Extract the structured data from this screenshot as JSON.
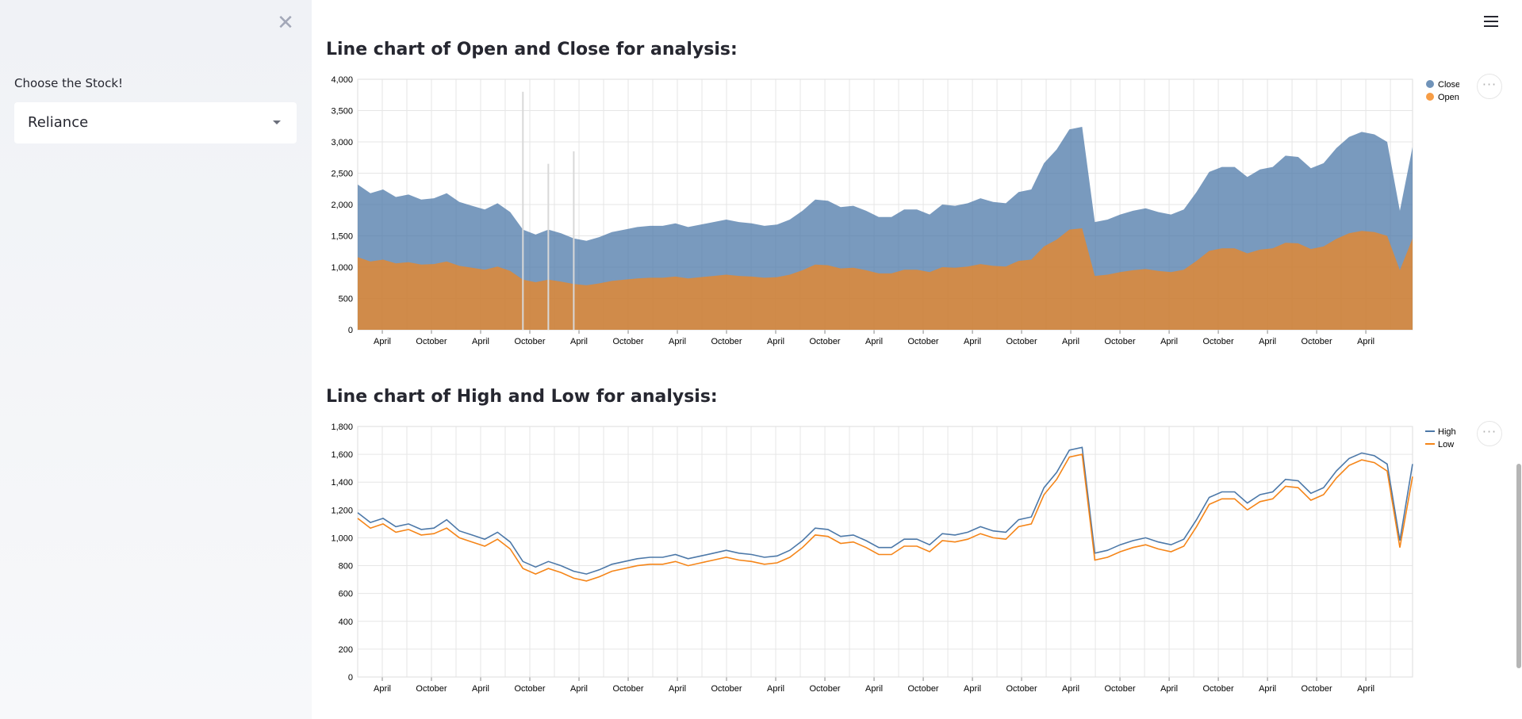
{
  "sidebar": {
    "close_icon": "✕",
    "select_label": "Choose the Stock!",
    "selected_stock": "Reliance"
  },
  "header": {
    "menu_icon": "hamburger-menu-icon"
  },
  "colors": {
    "blue": "#4c78a8",
    "orange": "#f58518",
    "grid": "#e6e6e6"
  },
  "chart_data": [
    {
      "type": "area",
      "title": "Line chart of Open and Close for analysis:",
      "stacked": true,
      "ylim": [
        0,
        4000
      ],
      "yticks": [
        0,
        500,
        1000,
        1500,
        2000,
        2500,
        3000,
        3500,
        4000
      ],
      "xtick_labels": [
        "April",
        "October",
        "April",
        "October",
        "April",
        "October",
        "April",
        "October",
        "April",
        "October",
        "April",
        "October",
        "April",
        "October",
        "April",
        "October",
        "April",
        "October",
        "April",
        "October",
        "April"
      ],
      "legend": {
        "position": "top-right",
        "entries": [
          {
            "name": "Close",
            "color": "#4c78a8",
            "symbol": "circle"
          },
          {
            "name": "Open",
            "color": "#f58518",
            "symbol": "circle"
          }
        ]
      },
      "grid": true,
      "series": [
        {
          "name": "Open",
          "values": [
            1160,
            1090,
            1120,
            1060,
            1080,
            1040,
            1050,
            1090,
            1020,
            990,
            960,
            1010,
            940,
            800,
            760,
            800,
            770,
            730,
            710,
            740,
            780,
            800,
            820,
            830,
            830,
            850,
            820,
            840,
            860,
            880,
            860,
            850,
            830,
            840,
            880,
            950,
            1040,
            1030,
            980,
            990,
            950,
            900,
            900,
            960,
            960,
            920,
            1000,
            990,
            1010,
            1050,
            1020,
            1010,
            1100,
            1120,
            1330,
            1440,
            1600,
            1620,
            860,
            880,
            920,
            950,
            970,
            940,
            920,
            960,
            1100,
            1260,
            1300,
            1300,
            1220,
            1280,
            1300,
            1390,
            1380,
            1290,
            1330,
            1450,
            1540,
            1580,
            1560,
            1500,
            950,
            1460
          ]
        },
        {
          "name": "Close",
          "values": [
            1160,
            1090,
            1120,
            1060,
            1080,
            1040,
            1050,
            1090,
            1020,
            990,
            960,
            1010,
            940,
            800,
            760,
            800,
            770,
            730,
            710,
            740,
            780,
            800,
            820,
            830,
            830,
            850,
            820,
            840,
            860,
            880,
            860,
            850,
            830,
            840,
            880,
            950,
            1040,
            1030,
            980,
            990,
            950,
            900,
            900,
            960,
            960,
            920,
            1000,
            990,
            1010,
            1050,
            1020,
            1010,
            1100,
            1120,
            1330,
            1440,
            1600,
            1620,
            860,
            880,
            920,
            950,
            970,
            940,
            920,
            960,
            1100,
            1260,
            1300,
            1300,
            1220,
            1280,
            1300,
            1390,
            1380,
            1290,
            1330,
            1450,
            1540,
            1580,
            1560,
            1500,
            950,
            1460
          ]
        }
      ],
      "spikes": [
        {
          "index": 13,
          "value": 3800
        },
        {
          "index": 15,
          "value": 2650
        },
        {
          "index": 17,
          "value": 2850
        }
      ]
    },
    {
      "type": "line",
      "title": "Line chart of High and Low for analysis:",
      "ylim": [
        0,
        1800
      ],
      "yticks": [
        0,
        200,
        400,
        600,
        800,
        1000,
        1200,
        1400,
        1600,
        1800
      ],
      "xtick_labels": [
        "April",
        "October",
        "April",
        "October",
        "April",
        "October",
        "April",
        "October",
        "April",
        "October",
        "April",
        "October",
        "April",
        "October",
        "April",
        "October",
        "April",
        "October",
        "April",
        "October",
        "April"
      ],
      "legend": {
        "position": "top-right",
        "entries": [
          {
            "name": "High",
            "color": "#4c78a8",
            "symbol": "line"
          },
          {
            "name": "Low",
            "color": "#f58518",
            "symbol": "line"
          }
        ]
      },
      "grid": true,
      "series": [
        {
          "name": "High",
          "values": [
            1180,
            1110,
            1140,
            1080,
            1100,
            1060,
            1070,
            1130,
            1050,
            1020,
            990,
            1040,
            970,
            830,
            790,
            830,
            800,
            760,
            740,
            770,
            810,
            830,
            850,
            860,
            860,
            880,
            850,
            870,
            890,
            910,
            890,
            880,
            860,
            870,
            910,
            980,
            1070,
            1060,
            1010,
            1020,
            980,
            930,
            930,
            990,
            990,
            950,
            1030,
            1020,
            1040,
            1080,
            1050,
            1040,
            1130,
            1150,
            1360,
            1470,
            1630,
            1650,
            890,
            910,
            950,
            980,
            1000,
            970,
            950,
            990,
            1130,
            1290,
            1330,
            1330,
            1250,
            1310,
            1330,
            1420,
            1410,
            1320,
            1360,
            1480,
            1570,
            1610,
            1590,
            1530,
            980,
            1530
          ]
        },
        {
          "name": "Low",
          "values": [
            1140,
            1070,
            1100,
            1040,
            1060,
            1020,
            1030,
            1070,
            1000,
            970,
            940,
            990,
            920,
            780,
            740,
            780,
            750,
            710,
            690,
            720,
            760,
            780,
            800,
            810,
            810,
            830,
            800,
            820,
            840,
            860,
            840,
            830,
            810,
            820,
            860,
            930,
            1020,
            1010,
            960,
            970,
            930,
            880,
            880,
            940,
            940,
            900,
            980,
            970,
            990,
            1030,
            1000,
            990,
            1080,
            1100,
            1310,
            1420,
            1580,
            1600,
            840,
            860,
            900,
            930,
            950,
            920,
            900,
            940,
            1080,
            1240,
            1280,
            1280,
            1200,
            1260,
            1280,
            1370,
            1360,
            1270,
            1310,
            1430,
            1520,
            1560,
            1540,
            1480,
            930,
            1440
          ]
        }
      ]
    }
  ]
}
